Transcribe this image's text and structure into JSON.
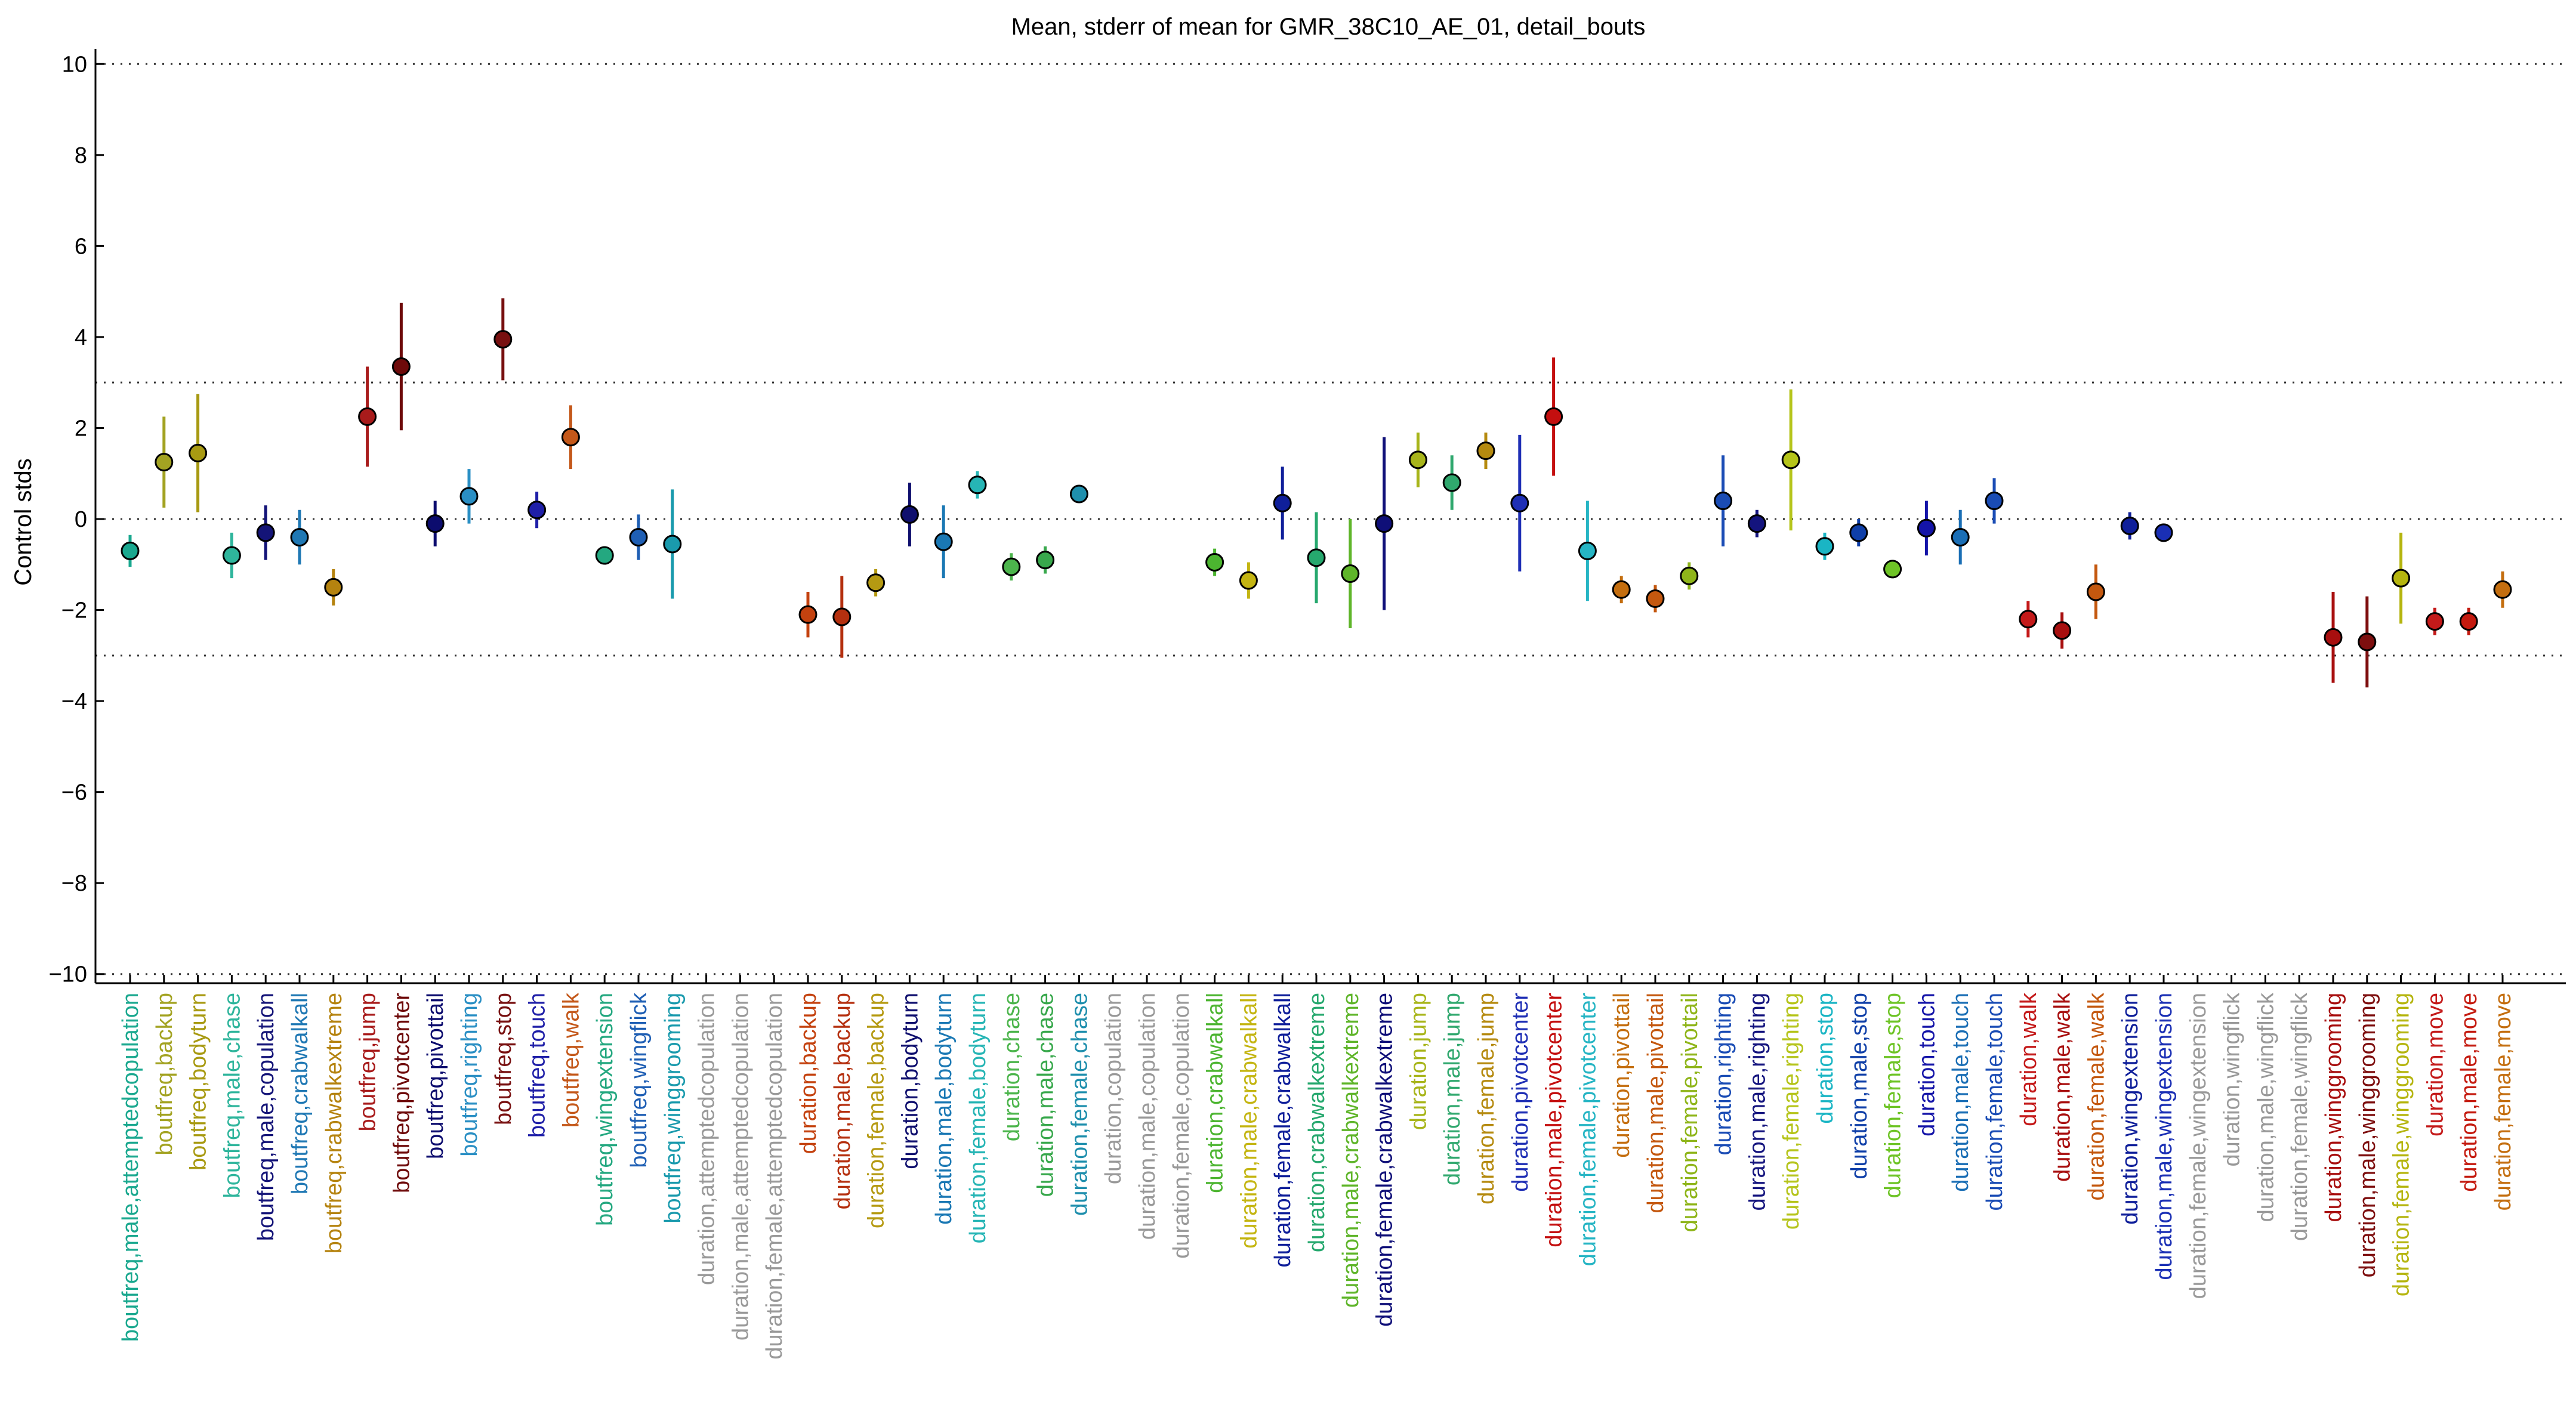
{
  "chart_data": {
    "type": "scatter",
    "title": "Mean, stderr of mean for GMR_38C10_AE_01, detail_bouts",
    "xlabel": "",
    "ylabel": "Control stds",
    "ylim": [
      -10.2,
      10.2
    ],
    "yticks": [
      -10,
      -8,
      -6,
      -4,
      -2,
      0,
      2,
      4,
      6,
      8,
      10
    ],
    "threshold_lines": [
      10,
      3,
      0,
      -3,
      -10
    ],
    "categories": [
      {
        "label": "boutfreq,male,attemptedcopulation",
        "color": "#1aa88f"
      },
      {
        "label": "boutfreq,backup",
        "color": "#a3a322"
      },
      {
        "label": "boutfreq,bodyturn",
        "color": "#a89a12"
      },
      {
        "label": "boutfreq,male,chase",
        "color": "#2fb59c"
      },
      {
        "label": "boutfreq,male,copulation",
        "color": "#141478"
      },
      {
        "label": "boutfreq,crabwalkall",
        "color": "#1f78b4"
      },
      {
        "label": "boutfreq,crabwalkextreme",
        "color": "#b5830f"
      },
      {
        "label": "boutfreq,jump",
        "color": "#a81b1b"
      },
      {
        "label": "boutfreq,pivotcenter",
        "color": "#6e0a0a"
      },
      {
        "label": "boutfreq,pivottail",
        "color": "#0c0c6e"
      },
      {
        "label": "boutfreq,righting",
        "color": "#2a8fc4"
      },
      {
        "label": "boutfreq,stop",
        "color": "#781010"
      },
      {
        "label": "boutfreq,touch",
        "color": "#1f1fa8"
      },
      {
        "label": "boutfreq,walk",
        "color": "#c4581a"
      },
      {
        "label": "boutfreq,wingextension",
        "color": "#24a880"
      },
      {
        "label": "boutfreq,wingflick",
        "color": "#1f5fb4"
      },
      {
        "label": "boutfreq,winggrooming",
        "color": "#1a9aad"
      },
      {
        "label": "duration,attemptedcopulation",
        "color": "#999999"
      },
      {
        "label": "duration,male,attemptedcopulation",
        "color": "#999999"
      },
      {
        "label": "duration,female,attemptedcopulation",
        "color": "#999999"
      },
      {
        "label": "duration,backup",
        "color": "#c4420f"
      },
      {
        "label": "duration,male,backup",
        "color": "#b5300f"
      },
      {
        "label": "duration,female,backup",
        "color": "#b59a12"
      },
      {
        "label": "duration,bodyturn",
        "color": "#0f0f6e"
      },
      {
        "label": "duration,male,bodyturn",
        "color": "#1a78b4"
      },
      {
        "label": "duration,female,bodyturn",
        "color": "#26b5b5"
      },
      {
        "label": "duration,chase",
        "color": "#4cb54c"
      },
      {
        "label": "duration,male,chase",
        "color": "#38a84c"
      },
      {
        "label": "duration,female,chase",
        "color": "#1f8fad"
      },
      {
        "label": "duration,copulation",
        "color": "#999999"
      },
      {
        "label": "duration,male,copulation",
        "color": "#999999"
      },
      {
        "label": "duration,female,copulation",
        "color": "#999999"
      },
      {
        "label": "duration,crabwalkall",
        "color": "#4cb530"
      },
      {
        "label": "duration,male,crabwalkall",
        "color": "#c4b512"
      },
      {
        "label": "duration,female,crabwalkall",
        "color": "#0f1f9a"
      },
      {
        "label": "duration,crabwalkextreme",
        "color": "#26a86e"
      },
      {
        "label": "duration,male,crabwalkextreme",
        "color": "#5fb52a"
      },
      {
        "label": "duration,female,crabwalkextreme",
        "color": "#0f0f78"
      },
      {
        "label": "duration,jump",
        "color": "#a8b51a"
      },
      {
        "label": "duration,male,jump",
        "color": "#30a86e"
      },
      {
        "label": "duration,female,jump",
        "color": "#b58a0f"
      },
      {
        "label": "duration,pivotcenter",
        "color": "#1f2fb5"
      },
      {
        "label": "duration,male,pivotcenter",
        "color": "#c40f0f"
      },
      {
        "label": "duration,female,pivotcenter",
        "color": "#26b5c4"
      },
      {
        "label": "duration,pivottail",
        "color": "#c46e0f"
      },
      {
        "label": "duration,male,pivottail",
        "color": "#c4580f"
      },
      {
        "label": "duration,female,pivottail",
        "color": "#8fb51a"
      },
      {
        "label": "duration,righting",
        "color": "#1a4cb5"
      },
      {
        "label": "duration,male,righting",
        "color": "#14147e"
      },
      {
        "label": "duration,female,righting",
        "color": "#b5c41a"
      },
      {
        "label": "duration,stop",
        "color": "#1ab5c4"
      },
      {
        "label": "duration,male,stop",
        "color": "#0f3fa8"
      },
      {
        "label": "duration,female,stop",
        "color": "#6ec426"
      },
      {
        "label": "duration,touch",
        "color": "#1414a8"
      },
      {
        "label": "duration,male,touch",
        "color": "#1a6eb5"
      },
      {
        "label": "duration,female,touch",
        "color": "#1a4cb5"
      },
      {
        "label": "duration,walk",
        "color": "#c41a1a"
      },
      {
        "label": "duration,male,walk",
        "color": "#a80f0f"
      },
      {
        "label": "duration,female,walk",
        "color": "#c4580f"
      },
      {
        "label": "duration,wingextension",
        "color": "#0f1f9a"
      },
      {
        "label": "duration,male,wingextension",
        "color": "#1a2fb5"
      },
      {
        "label": "duration,female,wingextension",
        "color": "#999999"
      },
      {
        "label": "duration,wingflick",
        "color": "#999999"
      },
      {
        "label": "duration,male,wingflick",
        "color": "#999999"
      },
      {
        "label": "duration,female,wingflick",
        "color": "#999999"
      },
      {
        "label": "duration,winggrooming",
        "color": "#a80f0f"
      },
      {
        "label": "duration,male,winggrooming",
        "color": "#7e0f0f"
      },
      {
        "label": "duration,female,winggrooming",
        "color": "#b5b50f"
      },
      {
        "label": "duration,move",
        "color": "#c41a1a"
      },
      {
        "label": "duration,male,move",
        "color": "#c41a0f"
      },
      {
        "label": "duration,female,move",
        "color": "#c46e0f"
      }
    ],
    "series": [
      {
        "name": "mean",
        "values": [
          -0.7,
          1.25,
          1.45,
          -0.8,
          -0.3,
          -0.4,
          -1.5,
          2.25,
          3.35,
          -0.1,
          0.5,
          3.95,
          0.2,
          1.8,
          -0.8,
          -0.4,
          -0.55,
          null,
          null,
          null,
          -2.1,
          -2.15,
          -1.4,
          0.1,
          -0.5,
          0.75,
          -1.05,
          -0.9,
          0.55,
          null,
          null,
          null,
          -0.95,
          -1.35,
          0.35,
          -0.85,
          -1.2,
          -0.1,
          1.3,
          0.8,
          1.5,
          0.35,
          2.25,
          -0.7,
          -1.55,
          -1.75,
          -1.25,
          0.4,
          -0.1,
          1.3,
          -0.6,
          -0.3,
          -1.1,
          -0.2,
          -0.4,
          0.4,
          -2.2,
          -2.45,
          -1.6,
          -0.15,
          -0.3,
          null,
          null,
          null,
          null,
          -2.6,
          -2.7,
          -1.3,
          -2.25,
          -2.25,
          -1.55
        ]
      },
      {
        "name": "stderr",
        "values": [
          0.35,
          1.0,
          1.3,
          0.5,
          0.6,
          0.6,
          0.4,
          1.1,
          1.4,
          0.5,
          0.6,
          0.9,
          0.4,
          0.7,
          0.2,
          0.5,
          1.2,
          null,
          null,
          null,
          0.5,
          0.9,
          0.3,
          0.7,
          0.8,
          0.3,
          0.3,
          0.3,
          0.1,
          null,
          null,
          null,
          0.3,
          0.4,
          0.8,
          1.0,
          1.2,
          1.9,
          0.6,
          0.6,
          0.4,
          1.5,
          1.3,
          1.1,
          0.3,
          0.3,
          0.3,
          1.0,
          0.3,
          1.55,
          0.3,
          0.3,
          0.2,
          0.6,
          0.6,
          0.5,
          0.4,
          0.4,
          0.6,
          0.3,
          0.2,
          null,
          null,
          null,
          null,
          1.0,
          1.0,
          1.0,
          0.3,
          0.3,
          0.4
        ]
      }
    ],
    "grid": "dotted horizontal lines at ±10, ±3 and 0",
    "legend": "none"
  }
}
